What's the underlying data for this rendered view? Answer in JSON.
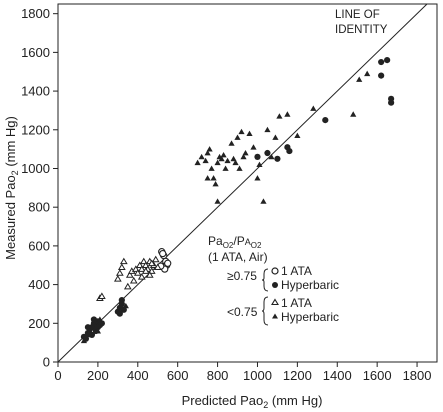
{
  "chart_data": {
    "type": "scatter",
    "xlabel": "Predicted Pao",
    "xlabel_sub": "2",
    "xlabel_unit": " (mm Hg)",
    "ylabel": "Measured Pao",
    "ylabel_sub": "2",
    "ylabel_unit": " (mm Hg)",
    "xlim": [
      0,
      1900
    ],
    "ylim": [
      0,
      1850
    ],
    "x_ticks": [
      0,
      200,
      400,
      600,
      800,
      1000,
      1200,
      1400,
      1600,
      1800
    ],
    "y_ticks": [
      0,
      200,
      400,
      600,
      800,
      1000,
      1200,
      1400,
      1600,
      1800
    ],
    "identity_line": {
      "x": [
        0,
        1850
      ],
      "y": [
        0,
        1850
      ]
    },
    "annotation": {
      "line1": "LINE OF",
      "line2": "IDENTITY"
    },
    "legend": {
      "header_a": "Pa",
      "header_a_sub": "O2",
      "header_b": "/P",
      "header_b_small": "A",
      "header_b_sub": "O2",
      "header_line2": "(1 ATA, Air)",
      "group1_label": "≥0.75",
      "group2_label": "<0.75",
      "entries": [
        {
          "marker": "open-circle",
          "label": "1 ATA"
        },
        {
          "marker": "filled-circle",
          "label": "Hyperbaric"
        },
        {
          "marker": "open-triangle",
          "label": "1 ATA"
        },
        {
          "marker": "filled-triangle",
          "label": "Hyperbaric"
        }
      ]
    },
    "series": [
      {
        "name": "≥0.75 1 ATA",
        "marker": "open-circle",
        "points": [
          [
            520,
            570
          ],
          [
            530,
            550
          ],
          [
            540,
            520
          ],
          [
            545,
            500
          ],
          [
            535,
            480
          ],
          [
            525,
            560
          ],
          [
            550,
            510
          ],
          [
            515,
            495
          ]
        ]
      },
      {
        "name": "≥0.75 Hyperbaric",
        "marker": "filled-circle",
        "points": [
          [
            130,
            130
          ],
          [
            140,
            120
          ],
          [
            150,
            150
          ],
          [
            160,
            170
          ],
          [
            170,
            180
          ],
          [
            180,
            200
          ],
          [
            190,
            160
          ],
          [
            200,
            210
          ],
          [
            210,
            190
          ],
          [
            220,
            200
          ],
          [
            150,
            180
          ],
          [
            170,
            140
          ],
          [
            180,
            220
          ],
          [
            200,
            180
          ],
          [
            300,
            260
          ],
          [
            310,
            280
          ],
          [
            320,
            300
          ],
          [
            330,
            270
          ],
          [
            320,
            320
          ],
          [
            310,
            250
          ],
          [
            1000,
            1060
          ],
          [
            1050,
            1080
          ],
          [
            1100,
            1050
          ],
          [
            1150,
            1110
          ],
          [
            1160,
            1090
          ],
          [
            1340,
            1250
          ],
          [
            1620,
            1550
          ],
          [
            1650,
            1560
          ],
          [
            1620,
            1480
          ],
          [
            1670,
            1340
          ],
          [
            1670,
            1360
          ]
        ]
      },
      {
        "name": "<0.75 1 ATA",
        "marker": "open-triangle",
        "points": [
          [
            210,
            330
          ],
          [
            220,
            340
          ],
          [
            300,
            430
          ],
          [
            310,
            460
          ],
          [
            320,
            490
          ],
          [
            330,
            520
          ],
          [
            350,
            390
          ],
          [
            360,
            450
          ],
          [
            370,
            470
          ],
          [
            390,
            480
          ],
          [
            400,
            460
          ],
          [
            410,
            500
          ],
          [
            420,
            440
          ],
          [
            430,
            520
          ],
          [
            440,
            500
          ],
          [
            450,
            480
          ],
          [
            460,
            520
          ],
          [
            470,
            470
          ],
          [
            480,
            500
          ],
          [
            490,
            530
          ],
          [
            500,
            490
          ],
          [
            380,
            420
          ],
          [
            420,
            480
          ],
          [
            460,
            450
          ],
          [
            470,
            510
          ],
          [
            440,
            470
          ]
        ]
      },
      {
        "name": "<0.75 Hyperbaric",
        "marker": "filled-triangle",
        "points": [
          [
            130,
            110
          ],
          [
            150,
            140
          ],
          [
            160,
            160
          ],
          [
            190,
            180
          ],
          [
            200,
            160
          ],
          [
            210,
            220
          ],
          [
            320,
            280
          ],
          [
            340,
            290
          ],
          [
            700,
            1030
          ],
          [
            720,
            1060
          ],
          [
            740,
            1040
          ],
          [
            750,
            1080
          ],
          [
            760,
            1100
          ],
          [
            770,
            1000
          ],
          [
            780,
            950
          ],
          [
            790,
            920
          ],
          [
            800,
            1030
          ],
          [
            810,
            1060
          ],
          [
            820,
            1050
          ],
          [
            830,
            1070
          ],
          [
            840,
            1000
          ],
          [
            850,
            1040
          ],
          [
            870,
            1130
          ],
          [
            880,
            1050
          ],
          [
            890,
            1030
          ],
          [
            900,
            1160
          ],
          [
            910,
            1000
          ],
          [
            920,
            1190
          ],
          [
            930,
            1060
          ],
          [
            940,
            1080
          ],
          [
            960,
            1180
          ],
          [
            980,
            1110
          ],
          [
            1000,
            950
          ],
          [
            1010,
            1020
          ],
          [
            1030,
            830
          ],
          [
            800,
            830
          ],
          [
            750,
            950
          ],
          [
            1050,
            1200
          ],
          [
            1070,
            1060
          ],
          [
            1090,
            1160
          ],
          [
            1110,
            1270
          ],
          [
            1150,
            1280
          ],
          [
            1200,
            1170
          ],
          [
            1280,
            1310
          ],
          [
            1480,
            1280
          ],
          [
            1510,
            1460
          ],
          [
            1550,
            1490
          ]
        ]
      }
    ]
  }
}
